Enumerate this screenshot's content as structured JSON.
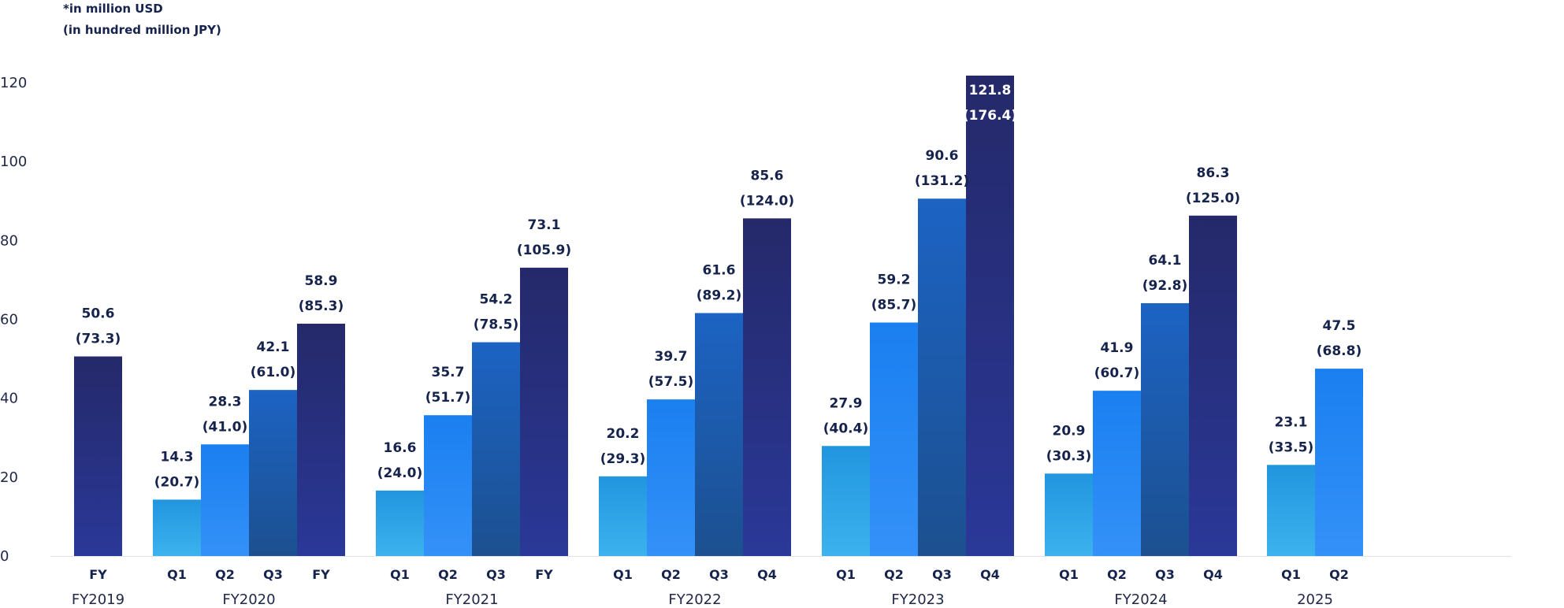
{
  "notes": {
    "unit_primary": "*in million USD",
    "unit_secondary": "(in hundred million JPY)"
  },
  "colors": {
    "q1_top": "#2196df",
    "q1_bottom": "#3cb2ee",
    "q2_top": "#1a7ff0",
    "q2_bottom": "#3491f8",
    "q3_top": "#1c63c3",
    "q3_bottom": "#1c5090",
    "q4_top": "#25296a",
    "q4_bottom": "#2a3898",
    "axis": "#dfe3ea",
    "text": "#15234d"
  },
  "chart_data": {
    "type": "bar",
    "yaxis": {
      "min": 0,
      "max": 120,
      "ticks": [
        "0",
        "20",
        "40",
        "60",
        "80",
        "100",
        "120"
      ]
    },
    "grid": false,
    "legend": "none",
    "groups": [
      {
        "label": "FY2019",
        "bars": [
          {
            "category": "FY",
            "value": 50.6,
            "label": "50.6",
            "sub_label": "(73.3)",
            "style": "q4"
          }
        ]
      },
      {
        "label": "FY2020",
        "bars": [
          {
            "category": "Q1",
            "value": 14.3,
            "label": "14.3",
            "sub_label": "(20.7)",
            "style": "q1"
          },
          {
            "category": "Q2",
            "value": 28.3,
            "label": "28.3",
            "sub_label": "(41.0)",
            "style": "q2"
          },
          {
            "category": "Q3",
            "value": 42.1,
            "label": "42.1",
            "sub_label": "(61.0)",
            "style": "q3"
          },
          {
            "category": "FY",
            "value": 58.9,
            "label": "58.9",
            "sub_label": "(85.3)",
            "style": "q4"
          }
        ]
      },
      {
        "label": "FY2021",
        "bars": [
          {
            "category": "Q1",
            "value": 16.6,
            "label": "16.6",
            "sub_label": "(24.0)",
            "style": "q1"
          },
          {
            "category": "Q2",
            "value": 35.7,
            "label": "35.7",
            "sub_label": "(51.7)",
            "style": "q2"
          },
          {
            "category": "Q3",
            "value": 54.2,
            "label": "54.2",
            "sub_label": "(78.5)",
            "style": "q3"
          },
          {
            "category": "FY",
            "value": 73.1,
            "label": "73.1",
            "sub_label": "(105.9)",
            "style": "q4"
          }
        ]
      },
      {
        "label": "FY2022",
        "bars": [
          {
            "category": "Q1",
            "value": 20.2,
            "label": "20.2",
            "sub_label": "(29.3)",
            "style": "q1"
          },
          {
            "category": "Q2",
            "value": 39.7,
            "label": "39.7",
            "sub_label": "(57.5)",
            "style": "q2"
          },
          {
            "category": "Q3",
            "value": 61.6,
            "label": "61.6",
            "sub_label": "(89.2)",
            "style": "q3"
          },
          {
            "category": "Q4",
            "value": 85.6,
            "label": "85.6",
            "sub_label": "(124.0)",
            "style": "q4"
          }
        ]
      },
      {
        "label": "FY2023",
        "bars": [
          {
            "category": "Q1",
            "value": 27.9,
            "label": "27.9",
            "sub_label": "(40.4)",
            "style": "q1"
          },
          {
            "category": "Q2",
            "value": 59.2,
            "label": "59.2",
            "sub_label": "(85.7)",
            "style": "q2"
          },
          {
            "category": "Q3",
            "value": 90.6,
            "label": "90.6",
            "sub_label": "(131.2)",
            "style": "q3"
          },
          {
            "category": "Q4",
            "value": 121.8,
            "label": "121.8",
            "sub_label": "(176.4)",
            "style": "q4"
          }
        ]
      },
      {
        "label": "FY2024",
        "bars": [
          {
            "category": "Q1",
            "value": 20.9,
            "label": "20.9",
            "sub_label": "(30.3)",
            "style": "q1"
          },
          {
            "category": "Q2",
            "value": 41.9,
            "label": "41.9",
            "sub_label": "(60.7)",
            "style": "q2"
          },
          {
            "category": "Q3",
            "value": 64.1,
            "label": "64.1",
            "sub_label": "(92.8)",
            "style": "q3"
          },
          {
            "category": "Q4",
            "value": 86.3,
            "label": "86.3",
            "sub_label": "(125.0)",
            "style": "q4"
          }
        ]
      },
      {
        "label": "2025",
        "bars": [
          {
            "category": "Q1",
            "value": 23.1,
            "label": "23.1",
            "sub_label": "(33.5)",
            "style": "q1"
          },
          {
            "category": "Q2",
            "value": 47.5,
            "label": "47.5",
            "sub_label": "(68.8)",
            "style": "q2"
          }
        ]
      }
    ]
  }
}
